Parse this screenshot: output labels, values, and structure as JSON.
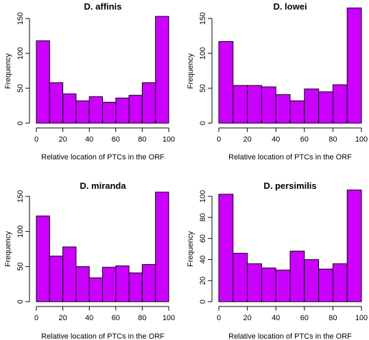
{
  "chart_data": [
    {
      "type": "bar",
      "title": "D. affinis",
      "xlabel": "Relative location of PTCs in the ORF",
      "ylabel": "Frequency",
      "bins": [
        [
          0,
          10
        ],
        [
          10,
          20
        ],
        [
          20,
          30
        ],
        [
          30,
          40
        ],
        [
          40,
          50
        ],
        [
          50,
          60
        ],
        [
          60,
          70
        ],
        [
          70,
          80
        ],
        [
          80,
          90
        ],
        [
          90,
          100
        ]
      ],
      "values": [
        118,
        58,
        42,
        32,
        38,
        30,
        36,
        40,
        58,
        153
      ],
      "xlim": [
        0,
        100
      ],
      "ylim": [
        0,
        150
      ],
      "xticks": [
        0,
        20,
        40,
        60,
        80,
        100
      ],
      "yticks": [
        0,
        50,
        100,
        150
      ],
      "bar_color": "#cc00ff",
      "grid": false
    },
    {
      "type": "bar",
      "title": "D. lowei",
      "xlabel": "Relative location of PTCs in the ORF",
      "ylabel": "Frequency",
      "bins": [
        [
          0,
          10
        ],
        [
          10,
          20
        ],
        [
          20,
          30
        ],
        [
          30,
          40
        ],
        [
          40,
          50
        ],
        [
          50,
          60
        ],
        [
          60,
          70
        ],
        [
          70,
          80
        ],
        [
          80,
          90
        ],
        [
          90,
          100
        ]
      ],
      "values": [
        117,
        54,
        54,
        52,
        41,
        32,
        49,
        45,
        55,
        165
      ],
      "xlim": [
        0,
        100
      ],
      "ylim": [
        0,
        150
      ],
      "xticks": [
        0,
        20,
        40,
        60,
        80,
        100
      ],
      "yticks": [
        0,
        50,
        100,
        150
      ],
      "bar_color": "#cc00ff",
      "grid": false
    },
    {
      "type": "bar",
      "title": "D. miranda",
      "xlabel": "Relative location of PTCs in the ORF",
      "ylabel": "Frequency",
      "bins": [
        [
          0,
          10
        ],
        [
          10,
          20
        ],
        [
          20,
          30
        ],
        [
          30,
          40
        ],
        [
          40,
          50
        ],
        [
          50,
          60
        ],
        [
          60,
          70
        ],
        [
          70,
          80
        ],
        [
          80,
          90
        ],
        [
          90,
          100
        ]
      ],
      "values": [
        122,
        65,
        78,
        50,
        34,
        49,
        51,
        41,
        53,
        156
      ],
      "xlim": [
        0,
        100
      ],
      "ylim": [
        0,
        150
      ],
      "xticks": [
        0,
        20,
        40,
        60,
        80,
        100
      ],
      "yticks": [
        0,
        50,
        100,
        150
      ],
      "bar_color": "#cc00ff",
      "grid": false
    },
    {
      "type": "bar",
      "title": "D. persimilis",
      "xlabel": "Relative location of PTCs in the ORF",
      "ylabel": "Frequency",
      "bins": [
        [
          0,
          10
        ],
        [
          10,
          20
        ],
        [
          20,
          30
        ],
        [
          30,
          40
        ],
        [
          40,
          50
        ],
        [
          50,
          60
        ],
        [
          60,
          70
        ],
        [
          70,
          80
        ],
        [
          80,
          90
        ],
        [
          90,
          100
        ]
      ],
      "values": [
        102,
        46,
        36,
        32,
        30,
        48,
        40,
        31,
        36,
        106
      ],
      "xlim": [
        0,
        100
      ],
      "ylim": [
        0,
        100
      ],
      "xticks": [
        0,
        20,
        40,
        60,
        80,
        100
      ],
      "yticks": [
        0,
        20,
        40,
        60,
        80,
        100
      ],
      "bar_color": "#cc00ff",
      "grid": false
    }
  ]
}
